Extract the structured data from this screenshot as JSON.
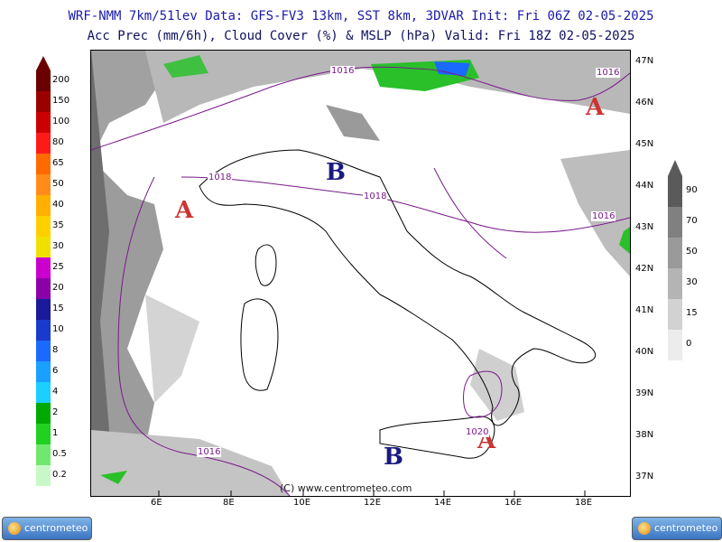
{
  "header": {
    "line1": "WRF-NMM 7km/51lev  Data: GFS-FV3 13km, SST 8km, 3DVAR  Init: Fri 06Z 02-05-2025",
    "line2": "Acc Prec (mm/6h), Cloud Cover (%) & MSLP (hPa)  Valid: Fri 18Z 02-05-2025"
  },
  "map": {
    "copyright": "(C) www.centrometeo.com",
    "lon_labels": [
      "6E",
      "8E",
      "10E",
      "12E",
      "14E",
      "16E",
      "18E"
    ],
    "lat_labels": [
      "47N",
      "46N",
      "45N",
      "44N",
      "43N",
      "42N",
      "41N",
      "40N",
      "39N",
      "38N",
      "37N"
    ],
    "pressure_centers": [
      {
        "type": "A",
        "color": "#cc3333"
      },
      {
        "type": "A",
        "color": "#cc3333"
      },
      {
        "type": "A",
        "color": "#cc3333"
      },
      {
        "type": "B",
        "color": "#1a1a80"
      },
      {
        "type": "B",
        "color": "#1a1a80"
      }
    ],
    "isobar_labels": [
      "1016",
      "1016",
      "1018",
      "1018",
      "1016",
      "1020",
      "1016"
    ]
  },
  "precip_colorbar": {
    "labels": [
      "200",
      "150",
      "100",
      "80",
      "65",
      "50",
      "40",
      "35",
      "30",
      "25",
      "20",
      "15",
      "10",
      "8",
      "6",
      "4",
      "2",
      "1",
      "0.5",
      "0.2"
    ],
    "colors": [
      "#6b0000",
      "#9b0000",
      "#cc0000",
      "#ff1a1a",
      "#ff6a00",
      "#ff8c1a",
      "#ffb000",
      "#ffd000",
      "#f0e000",
      "#cc00cc",
      "#8c00a8",
      "#1a1a9a",
      "#1a3acc",
      "#1a6aff",
      "#1aa0ff",
      "#1ad0ff",
      "#00aa00",
      "#22d022",
      "#70e870",
      "#c8f8c8"
    ]
  },
  "cloud_colorbar": {
    "labels": [
      "90",
      "70",
      "50",
      "30",
      "15",
      "0"
    ],
    "colors": [
      "#5a5a5a",
      "#808080",
      "#9a9a9a",
      "#b4b4b4",
      "#d2d2d2",
      "#ececec"
    ]
  },
  "logos": {
    "text": "centrometeo"
  }
}
